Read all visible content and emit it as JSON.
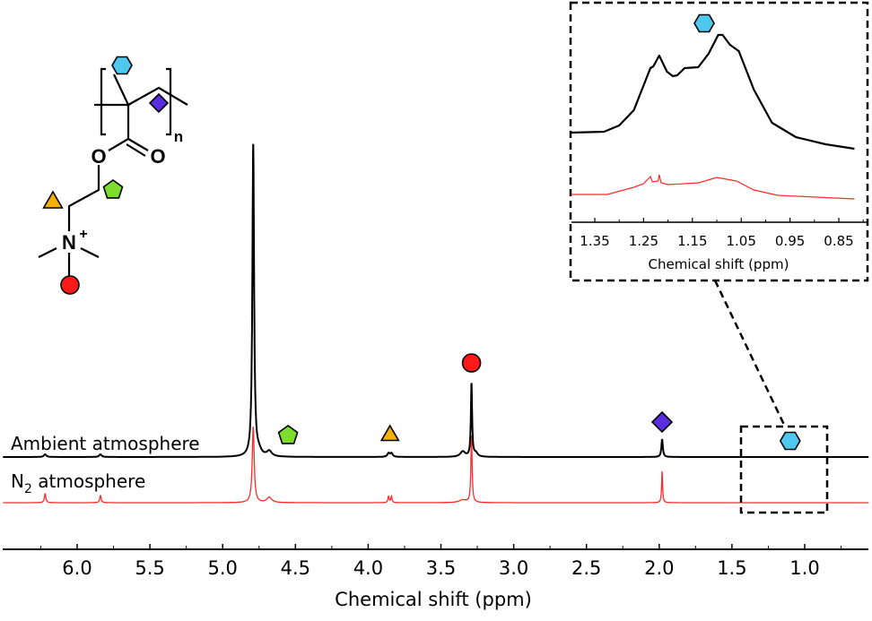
{
  "chart_data": {
    "type": "line",
    "xlabel": "Chemical shift (ppm)",
    "xlim": [
      6.51,
      0.56
    ],
    "x_reversed": true,
    "x_ticks": [
      "6.0",
      "5.5",
      "5.0",
      "4.5",
      "4.0",
      "3.5",
      "3.0",
      "2.5",
      "2.0",
      "1.5",
      "1.0"
    ],
    "ylabel": "",
    "series": [
      {
        "name": "Ambient atmosphere",
        "color": "#000000",
        "peaks_ppm_intensity_width": [
          [
            6.22,
            3,
            0.01
          ],
          [
            5.84,
            3,
            0.01
          ],
          [
            4.79,
            350,
            0.007
          ],
          [
            4.75,
            5,
            0.02
          ],
          [
            4.68,
            6,
            0.02
          ],
          [
            3.86,
            4,
            0.01
          ],
          [
            3.84,
            4,
            0.01
          ],
          [
            3.35,
            6,
            0.02
          ],
          [
            3.29,
            82,
            0.005
          ],
          [
            3.26,
            4,
            0.015
          ],
          [
            1.98,
            20,
            0.006
          ]
        ]
      },
      {
        "name": "N2 atmosphere",
        "name_main": "N",
        "name_sub": "2",
        "name_rest": " atmosphere",
        "color": "#ff2a2a",
        "peaks_ppm_intensity_width": [
          [
            6.22,
            10,
            0.006
          ],
          [
            5.84,
            8,
            0.006
          ],
          [
            4.79,
            85,
            0.008
          ],
          [
            4.68,
            6,
            0.02
          ],
          [
            3.86,
            7,
            0.005
          ],
          [
            3.84,
            7,
            0.005
          ],
          [
            3.35,
            3,
            0.03
          ],
          [
            3.29,
            75,
            0.005
          ],
          [
            1.98,
            35,
            0.004
          ]
        ]
      }
    ],
    "annotations": [
      {
        "marker": "pentagon",
        "color": "#7ddc2e",
        "ppm": 4.68
      },
      {
        "marker": "triangle",
        "color": "#f5b000",
        "ppm": 3.85
      },
      {
        "marker": "circle",
        "color": "#ff1a1a",
        "ppm": 3.29
      },
      {
        "marker": "diamond",
        "color": "#5a2ee0",
        "ppm": 1.98
      },
      {
        "marker": "hexagon",
        "color": "#4fc8f0",
        "ppm": 1.1
      }
    ],
    "zoom_box_ppm": [
      1.4,
      0.82
    ],
    "inset": {
      "xlabel": "Chemical shift (ppm)",
      "xlim": [
        1.397,
        0.792
      ],
      "x_ticks": [
        "1.35",
        "1.25",
        "1.15",
        "1.05",
        "0.95",
        "0.85"
      ],
      "marker": {
        "marker": "hexagon",
        "color": "#4fc8f0",
        "ppm": 1.1
      },
      "series": [
        {
          "name": "Ambient atmosphere",
          "color": "#000000",
          "points": [
            [
              1.398,
              100
            ],
            [
              1.331,
              101
            ],
            [
              1.3,
              108
            ],
            [
              1.27,
              125
            ],
            [
              1.236,
              172
            ],
            [
              1.23,
              174
            ],
            [
              1.218,
              186
            ],
            [
              1.202,
              168
            ],
            [
              1.19,
              163
            ],
            [
              1.181,
              164
            ],
            [
              1.166,
              172
            ],
            [
              1.138,
              173
            ],
            [
              1.117,
              188
            ],
            [
              1.097,
              209
            ],
            [
              1.088,
              209
            ],
            [
              1.073,
              198
            ],
            [
              1.055,
              191
            ],
            [
              1.024,
              148
            ],
            [
              0.987,
              111
            ],
            [
              0.938,
              95
            ],
            [
              0.877,
              87
            ],
            [
              0.818,
              82
            ]
          ]
        },
        {
          "name": "N2 atmosphere",
          "color": "#ff2a2a",
          "points": [
            [
              1.398,
              31
            ],
            [
              1.324,
              31
            ],
            [
              1.27,
              39
            ],
            [
              1.25,
              43
            ],
            [
              1.236,
              51
            ],
            [
              1.232,
              45
            ],
            [
              1.22,
              46
            ],
            [
              1.218,
              53
            ],
            [
              1.214,
              44
            ],
            [
              1.2,
              42
            ],
            [
              1.137,
              44
            ],
            [
              1.1,
              50
            ],
            [
              1.06,
              46
            ],
            [
              1.024,
              36
            ],
            [
              0.975,
              30
            ],
            [
              0.818,
              26
            ]
          ]
        }
      ]
    },
    "structure": {
      "atoms": [
        "O",
        "O",
        "N",
        "+",
        "n"
      ]
    }
  }
}
